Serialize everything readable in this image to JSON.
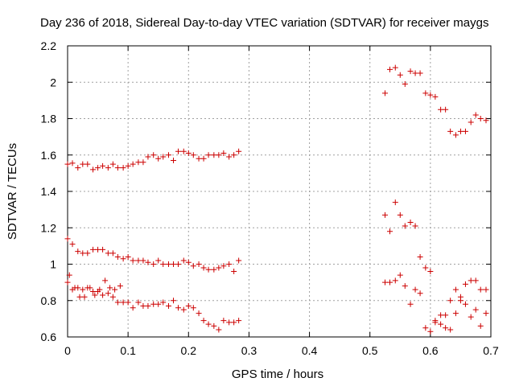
{
  "chart_data": {
    "type": "scatter",
    "title": "Day 236 of 2018, Sidereal Day-to-day VTEC variation (SDTVAR) for receiver maygs",
    "xlabel": "GPS time / hours",
    "ylabel": "SDTVAR / TECUs",
    "xlim": [
      0,
      0.7
    ],
    "ylim": [
      0.6,
      2.2
    ],
    "xticks": [
      0,
      0.1,
      0.2,
      0.3,
      0.4,
      0.5,
      0.6,
      0.7
    ],
    "xtick_labels": [
      "0",
      "0.1",
      "0.2",
      "0.3",
      "0.4",
      "0.5",
      "0.6",
      "0.7"
    ],
    "yticks": [
      0.6,
      0.8,
      1.0,
      1.2,
      1.4,
      1.6,
      1.8,
      2.0,
      2.2
    ],
    "ytick_labels": [
      "0.6",
      "0.8",
      "1",
      "1.2",
      "1.4",
      "1.6",
      "1.8",
      "2",
      "2.2"
    ],
    "grid": true,
    "marker": "plus",
    "color": "#cc0000",
    "series": [
      {
        "name": "upper",
        "x": [
          0.0,
          0.008,
          0.017,
          0.025,
          0.033,
          0.042,
          0.05,
          0.058,
          0.067,
          0.075,
          0.083,
          0.092,
          0.1,
          0.108,
          0.117,
          0.125,
          0.133,
          0.142,
          0.15,
          0.158,
          0.167,
          0.175,
          0.183,
          0.192,
          0.2,
          0.208,
          0.217,
          0.225,
          0.233,
          0.242,
          0.25,
          0.258,
          0.267,
          0.275,
          0.283,
          0.525,
          0.533,
          0.542,
          0.55,
          0.558,
          0.567,
          0.575,
          0.583,
          0.592,
          0.6,
          0.608,
          0.617,
          0.625,
          0.633,
          0.642,
          0.65,
          0.658,
          0.667,
          0.675,
          0.683,
          0.692
        ],
        "y": [
          1.55,
          1.555,
          1.53,
          1.55,
          1.55,
          1.52,
          1.53,
          1.54,
          1.53,
          1.55,
          1.53,
          1.53,
          1.54,
          1.55,
          1.56,
          1.56,
          1.59,
          1.6,
          1.58,
          1.59,
          1.6,
          1.57,
          1.62,
          1.62,
          1.61,
          1.6,
          1.58,
          1.58,
          1.6,
          1.6,
          1.6,
          1.61,
          1.59,
          1.6,
          1.62,
          1.94,
          2.07,
          2.08,
          2.04,
          1.99,
          2.06,
          2.05,
          2.05,
          1.94,
          1.93,
          1.92,
          1.85,
          1.85,
          1.73,
          1.71,
          1.73,
          1.73,
          1.78,
          1.82,
          1.8,
          1.79
        ]
      },
      {
        "name": "middle",
        "x": [
          0.0,
          0.008,
          0.017,
          0.025,
          0.033,
          0.042,
          0.05,
          0.058,
          0.067,
          0.075,
          0.083,
          0.092,
          0.1,
          0.108,
          0.117,
          0.125,
          0.133,
          0.142,
          0.15,
          0.158,
          0.167,
          0.175,
          0.183,
          0.192,
          0.2,
          0.208,
          0.217,
          0.225,
          0.233,
          0.242,
          0.25,
          0.258,
          0.267,
          0.275,
          0.283,
          0.525,
          0.533,
          0.542,
          0.55,
          0.558,
          0.567,
          0.575,
          0.583,
          0.592,
          0.6,
          0.608,
          0.617,
          0.625,
          0.633,
          0.642,
          0.65,
          0.658,
          0.667,
          0.675,
          0.683,
          0.692
        ],
        "y": [
          1.14,
          1.11,
          1.07,
          1.06,
          1.06,
          1.08,
          1.08,
          1.08,
          1.06,
          1.06,
          1.04,
          1.03,
          1.04,
          1.02,
          1.02,
          1.02,
          1.01,
          1.0,
          1.02,
          1.0,
          1.0,
          1.0,
          1.0,
          1.02,
          1.01,
          0.99,
          1.0,
          0.98,
          0.97,
          0.97,
          0.98,
          0.99,
          1.0,
          0.96,
          1.02,
          1.27,
          1.18,
          1.34,
          1.27,
          1.21,
          1.23,
          1.21,
          1.04,
          0.98,
          0.96,
          0.69,
          0.72,
          0.72,
          0.8,
          0.86,
          0.82,
          0.89,
          0.91,
          0.91,
          0.86,
          0.86
        ]
      },
      {
        "name": "lower",
        "x": [
          0.0,
          0.008,
          0.017,
          0.025,
          0.033,
          0.042,
          0.05,
          0.058,
          0.067,
          0.075,
          0.083,
          0.092,
          0.1,
          0.108,
          0.117,
          0.125,
          0.133,
          0.142,
          0.15,
          0.158,
          0.167,
          0.175,
          0.183,
          0.192,
          0.2,
          0.208,
          0.217,
          0.225,
          0.233,
          0.242,
          0.25,
          0.258,
          0.267,
          0.275,
          0.283,
          0.003,
          0.012,
          0.02,
          0.028,
          0.037,
          0.045,
          0.053,
          0.062,
          0.07,
          0.078,
          0.087,
          0.525,
          0.533,
          0.542,
          0.55,
          0.558,
          0.567,
          0.575,
          0.583,
          0.592,
          0.6,
          0.608,
          0.617,
          0.625,
          0.633,
          0.642,
          0.65,
          0.658,
          0.667,
          0.675,
          0.683,
          0.692
        ],
        "y": [
          0.9,
          0.86,
          0.87,
          0.86,
          0.87,
          0.85,
          0.85,
          0.83,
          0.84,
          0.82,
          0.79,
          0.79,
          0.79,
          0.76,
          0.79,
          0.77,
          0.77,
          0.78,
          0.78,
          0.79,
          0.77,
          0.8,
          0.76,
          0.75,
          0.77,
          0.76,
          0.73,
          0.69,
          0.67,
          0.66,
          0.64,
          0.69,
          0.68,
          0.68,
          0.69,
          0.94,
          0.87,
          0.82,
          0.82,
          0.87,
          0.83,
          0.86,
          0.91,
          0.87,
          0.86,
          0.88,
          0.9,
          0.9,
          0.91,
          0.94,
          0.88,
          0.78,
          0.86,
          0.84,
          0.65,
          0.63,
          0.68,
          0.67,
          0.65,
          0.64,
          0.73,
          0.8,
          0.78,
          0.71,
          0.75,
          0.66,
          0.73
        ]
      }
    ]
  }
}
